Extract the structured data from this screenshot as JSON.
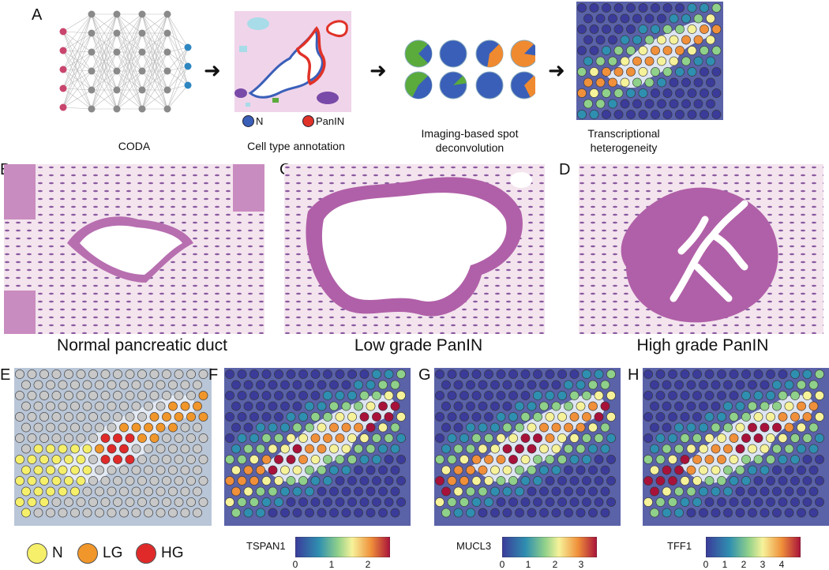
{
  "panels": {
    "A": {
      "label": "A",
      "captions": {
        "coda": "CODA",
        "annotation": "Cell type annotation",
        "deconv_line1": "Imaging-based spot",
        "deconv_line2": "deconvolution",
        "trans_line1": "Transcriptional",
        "trans_line2": "heterogeneity"
      },
      "annotation_legend": {
        "n": "N",
        "panin": "PanIN"
      },
      "arrow": "➜"
    },
    "B": {
      "label": "B",
      "caption": "Normal pancreatic duct"
    },
    "C": {
      "label": "C",
      "caption": "Low grade PanIN"
    },
    "D": {
      "label": "D",
      "caption": "High grade PanIN"
    },
    "E": {
      "label": "E",
      "legend": {
        "n": "N",
        "lg": "LG",
        "hg": "HG"
      }
    },
    "F": {
      "label": "F",
      "gene": "TSPAN1",
      "ticks": [
        "0",
        "1",
        "2"
      ]
    },
    "G": {
      "label": "G",
      "gene": "MUCL3",
      "ticks": [
        "0",
        "1",
        "2",
        "3"
      ]
    },
    "H": {
      "label": "H",
      "gene": "TFF1",
      "ticks": [
        "0",
        "1",
        "2",
        "3",
        "4"
      ]
    }
  },
  "colors": {
    "normal": "#3a5fb8",
    "panin": "#e03228",
    "green": "#5aab3c",
    "orange": "#f08a30",
    "n_spot": "#f5ef6a",
    "lg_spot": "#f0962a",
    "hg_spot": "#e02a2a",
    "tissue_pink": "#f0d4ea"
  }
}
